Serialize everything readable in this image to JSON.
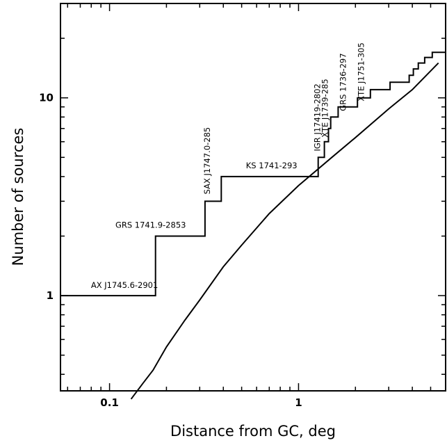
{
  "chart_data": {
    "type": "line",
    "title": "",
    "xlabel": "Distance from GC, deg",
    "ylabel": "Number of sources",
    "xscale": "log",
    "yscale": "log",
    "xlim": [
      0.055,
      6.0
    ],
    "ylim": [
      0.33,
      30
    ],
    "x_tick_labels": [
      {
        "value": 0.1,
        "label": "0.1"
      },
      {
        "value": 1,
        "label": "1"
      }
    ],
    "y_tick_labels": [
      {
        "value": 1,
        "label": "1"
      },
      {
        "value": 10,
        "label": "10"
      }
    ],
    "grid": false,
    "series": [
      {
        "kind": "step",
        "x": [
          0.055,
          0.175,
          0.175,
          0.32,
          0.32,
          0.39,
          0.39,
          1.27,
          1.27,
          1.37,
          1.37,
          1.44,
          1.44,
          1.48,
          1.48,
          1.62,
          1.62,
          2.05,
          2.05,
          2.4,
          2.4,
          3.05,
          3.05,
          3.85,
          3.85,
          4.05,
          4.05,
          4.3,
          4.3,
          4.65,
          4.65,
          5.1,
          5.1,
          5.55,
          5.55,
          6.0
        ],
        "y": [
          1,
          1,
          2,
          2,
          3,
          3,
          4,
          4,
          5,
          5,
          6,
          6,
          7,
          7,
          8,
          8,
          9,
          9,
          10,
          10,
          11,
          11,
          12,
          12,
          13,
          13,
          14,
          14,
          15,
          15,
          16,
          16,
          17,
          17,
          17,
          17
        ]
      },
      {
        "kind": "smooth",
        "x": [
          0.13,
          0.15,
          0.17,
          0.2,
          0.25,
          0.3,
          0.4,
          0.5,
          0.7,
          1.0,
          1.5,
          2.0,
          3.0,
          4.0,
          5.5
        ],
        "y": [
          0.3,
          0.36,
          0.42,
          0.55,
          0.75,
          0.95,
          1.4,
          1.8,
          2.6,
          3.6,
          5.0,
          6.3,
          8.8,
          11.0,
          15.0
        ]
      }
    ],
    "annotations": [
      {
        "text": "AX J1745.6-2901",
        "x": 0.12,
        "y": 1.04,
        "rotate": false
      },
      {
        "text": "GRS 1741.9-2853",
        "x": 0.165,
        "y": 2.1,
        "rotate": false
      },
      {
        "text": "SAX J1747.0-285",
        "x": 0.34,
        "y": 3.15,
        "rotate": true
      },
      {
        "text": "KS 1741-293",
        "x": 0.72,
        "y": 4.2,
        "rotate": false
      },
      {
        "text": "IGR J17419-2802",
        "x": 1.3,
        "y": 5.2,
        "rotate": true
      },
      {
        "text": "XTE J1739-285",
        "x": 1.43,
        "y": 6.1,
        "rotate": true
      },
      {
        "text": "GRS 1736-297",
        "x": 1.78,
        "y": 8.3,
        "rotate": true
      },
      {
        "text": "XTE J1751-305",
        "x": 2.22,
        "y": 9.3,
        "rotate": true
      }
    ]
  }
}
